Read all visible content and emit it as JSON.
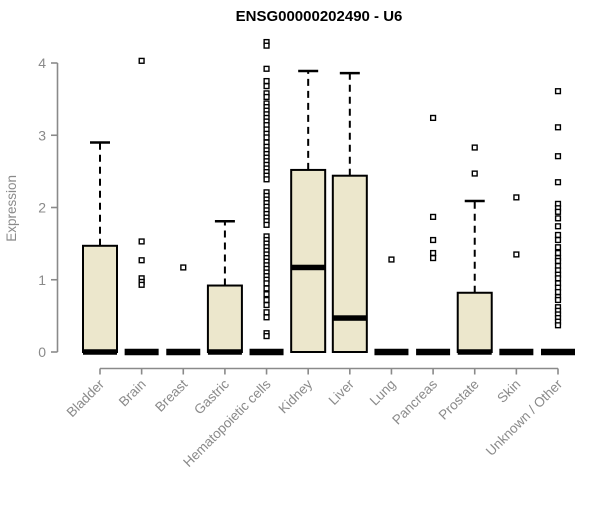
{
  "chart_data": {
    "type": "boxplot",
    "title": "ENSG00000202490 - U6",
    "ylabel": "Expression",
    "xlabel": "",
    "ylim": [
      0,
      4.35
    ],
    "yticks": [
      0,
      1,
      2,
      3,
      4
    ],
    "grid": false,
    "legend": null,
    "colors": {
      "box_fill": "#ECE7CC",
      "box_stroke": "#000000",
      "median": "#000000",
      "whisker": "#000000",
      "outlier_fill": "#ffffff",
      "outlier_stroke": "#000000",
      "axis": "#8A8A8A",
      "tick_label": "#8A8A8A",
      "title": "#000000"
    },
    "categories": [
      "Bladder",
      "Brain",
      "Breast",
      "Gastric",
      "Hematopoietic cells",
      "Kidney",
      "Liver",
      "Lung",
      "Pancreas",
      "Prostate",
      "Skin",
      "Unknown / Other"
    ],
    "series": [
      {
        "category": "Bladder",
        "q1": 0,
        "median": 0,
        "q3": 1.47,
        "whisker_low": 0,
        "whisker_high": 2.9,
        "outliers": []
      },
      {
        "category": "Brain",
        "q1": 0,
        "median": 0,
        "q3": 0,
        "whisker_low": 0,
        "whisker_high": 0,
        "outliers": [
          4.03,
          1.53,
          1.27,
          1.02,
          0.97,
          0.93
        ]
      },
      {
        "category": "Breast",
        "q1": 0,
        "median": 0,
        "q3": 0,
        "whisker_low": 0,
        "whisker_high": 0,
        "outliers": [
          1.17
        ]
      },
      {
        "category": "Gastric",
        "q1": 0,
        "median": 0,
        "q3": 0.92,
        "whisker_low": 0,
        "whisker_high": 1.81,
        "outliers": []
      },
      {
        "category": "Hematopoietic cells",
        "q1": 0,
        "median": 0,
        "q3": 0,
        "whisker_low": 0,
        "whisker_high": 0,
        "outliers": [
          4.29,
          4.24,
          3.92,
          3.75,
          3.68,
          3.58,
          3.53,
          3.44,
          3.39,
          3.34,
          3.29,
          3.24,
          3.19,
          3.14,
          3.08,
          3.02,
          2.97,
          2.9,
          2.84,
          2.79,
          2.74,
          2.69,
          2.64,
          2.59,
          2.54,
          2.49,
          2.44,
          2.39,
          2.21,
          2.16,
          2.11,
          2.06,
          2.01,
          1.96,
          1.91,
          1.86,
          1.81,
          1.76,
          1.6,
          1.55,
          1.5,
          1.45,
          1.4,
          1.35,
          1.3,
          1.25,
          1.2,
          1.15,
          1.1,
          1.05,
          1.0,
          0.95,
          0.88,
          0.8,
          0.72,
          0.65,
          0.55,
          0.48,
          0.26,
          0.22
        ]
      },
      {
        "category": "Kidney",
        "q1": 0,
        "median": 1.17,
        "q3": 2.52,
        "whisker_low": 0,
        "whisker_high": 3.89,
        "outliers": []
      },
      {
        "category": "Liver",
        "q1": 0,
        "median": 0.47,
        "q3": 2.44,
        "whisker_low": 0,
        "whisker_high": 3.86,
        "outliers": []
      },
      {
        "category": "Lung",
        "q1": 0,
        "median": 0,
        "q3": 0,
        "whisker_low": 0,
        "whisker_high": 0,
        "outliers": [
          1.28
        ]
      },
      {
        "category": "Pancreas",
        "q1": 0,
        "median": 0,
        "q3": 0,
        "whisker_low": 0,
        "whisker_high": 0,
        "outliers": [
          3.24,
          1.87,
          1.55,
          1.37,
          1.3
        ]
      },
      {
        "category": "Prostate",
        "q1": 0,
        "median": 0,
        "q3": 0.82,
        "whisker_low": 0,
        "whisker_high": 2.09,
        "outliers": [
          2.83,
          2.47
        ]
      },
      {
        "category": "Skin",
        "q1": 0,
        "median": 0,
        "q3": 0,
        "whisker_low": 0,
        "whisker_high": 0,
        "outliers": [
          2.14,
          1.35
        ]
      },
      {
        "category": "Unknown / Other",
        "q1": 0,
        "median": 0,
        "q3": 0,
        "whisker_low": 0,
        "whisker_high": 0,
        "outliers": [
          3.61,
          3.11,
          2.71,
          2.35,
          2.05,
          1.99,
          1.94,
          1.85,
          1.74,
          1.62,
          1.55,
          1.45,
          1.37,
          1.3,
          1.26,
          1.19,
          1.13,
          1.07,
          1.02,
          0.95,
          0.89,
          0.83,
          0.76,
          0.72,
          0.62,
          0.57,
          0.52,
          0.47,
          0.42,
          0.37
        ]
      }
    ]
  }
}
